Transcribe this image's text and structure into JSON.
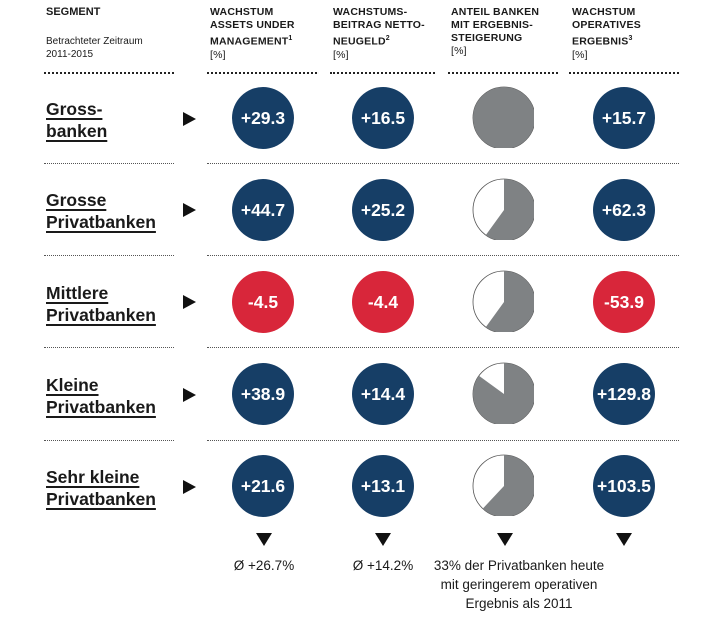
{
  "segment_header": {
    "title": "SEGMENT",
    "subtitle": "Betrachteter Zeitraum\n2011-2015"
  },
  "columns": [
    {
      "lines": "WACHSTUM\nASSETS UNDER\nMANAGEMENT",
      "sup": "1",
      "unit": "[%]"
    },
    {
      "lines": "WACHSTUMS-\nBEITRAG NETTO-\nNEUGELD",
      "sup": "2",
      "unit": "[%]"
    },
    {
      "lines": "ANTEIL BANKEN\nMIT ERGEBNIS-\nSTEIGERUNG",
      "sup": "",
      "unit": "[%]"
    },
    {
      "lines": "WACHSTUM\nOPERATIVES\nERGEBNIS",
      "sup": "3",
      "unit": "[%]"
    }
  ],
  "rows": [
    {
      "label": "Gross-\nbanken"
    },
    {
      "label": "Grosse\nPrivatbanken"
    },
    {
      "label": "Mittlere\nPrivatbanken"
    },
    {
      "label": "Kleine\nPrivatbanken"
    },
    {
      "label": "Sehr kleine\nPrivatbanken"
    }
  ],
  "footnotes": {
    "aum_avg": "Ø +26.7%",
    "nnm_avg": "Ø +14.2%",
    "share_note": "33% der Privatbanken heute\nmit geringerem operativen\nErgebnis als 2011"
  },
  "colors": {
    "positive": "#163e66",
    "negative": "#d8263a",
    "pie_fill": "#7f8284",
    "pie_empty": "#ffffff"
  },
  "chart_data": {
    "type": "table",
    "categories": [
      "Gross-banken",
      "Grosse Privatbanken",
      "Mittlere Privatbanken",
      "Kleine Privatbanken",
      "Sehr kleine Privatbanken"
    ],
    "series": [
      {
        "name": "WACHSTUM ASSETS UNDER MANAGEMENT [%]",
        "values": [
          29.3,
          44.7,
          -4.5,
          38.9,
          21.6
        ],
        "labels": [
          "+29.3",
          "+44.7",
          "-4.5",
          "+38.9",
          "+21.6"
        ]
      },
      {
        "name": "WACHSTUMS-BEITRAG NETTO-NEUGELD [%]",
        "values": [
          16.5,
          25.2,
          -4.4,
          14.4,
          13.1
        ],
        "labels": [
          "+16.5",
          "+25.2",
          "-4.4",
          "+14.4",
          "+13.1"
        ]
      },
      {
        "name": "ANTEIL BANKEN MIT ERGEBNIS-STEIGERUNG [%]",
        "values": [
          100,
          60,
          60,
          85,
          62
        ]
      },
      {
        "name": "WACHSTUM OPERATIVES ERGEBNIS [%]",
        "values": [
          15.7,
          62.3,
          -53.9,
          129.8,
          103.5
        ],
        "labels": [
          "+15.7",
          "+62.3",
          "-53.9",
          "+129.8",
          "+103.5"
        ]
      }
    ]
  }
}
